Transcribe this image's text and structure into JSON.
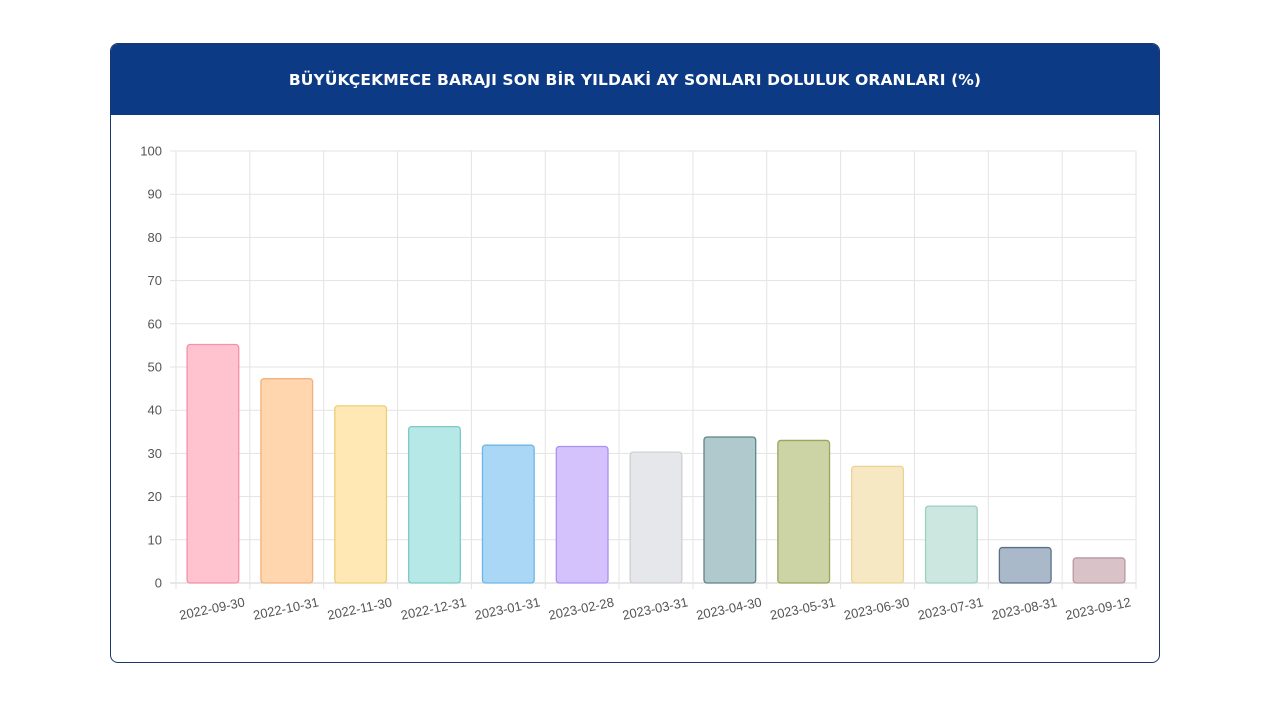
{
  "header": {
    "title": "BÜYÜKÇEKMECE BARAJI SON BİR YILDAKİ AY SONLARI DOLULUK ORANLARI (%)"
  },
  "colors": {
    "header_bg": "#0d3a84",
    "border": "#1a3670",
    "grid": "#e3e3e3"
  },
  "chart_data": {
    "type": "bar",
    "title": "BÜYÜKÇEKMECE BARAJI SON BİR YILDAKİ AY SONLARI DOLULUK ORANLARI (%)",
    "xlabel": "",
    "ylabel": "",
    "ylim": [
      0,
      100
    ],
    "yticks": [
      "0",
      "10",
      "20",
      "30",
      "40",
      "50",
      "60",
      "70",
      "80",
      "90",
      "100"
    ],
    "grid": true,
    "legend": "none",
    "categories": [
      "2022-09-30",
      "2022-10-31",
      "2022-11-30",
      "2022-12-31",
      "2023-01-31",
      "2023-02-28",
      "2023-03-31",
      "2023-04-30",
      "2023-05-31",
      "2023-06-30",
      "2023-07-31",
      "2023-08-31",
      "2023-09-12"
    ],
    "values": [
      55.2,
      47.3,
      41.0,
      36.2,
      31.9,
      31.6,
      30.3,
      33.8,
      33.0,
      27.0,
      17.8,
      8.2,
      5.8
    ],
    "bar_fill": [
      "#ffc2cf",
      "#ffd6ad",
      "#ffe8b3",
      "#b5e8e6",
      "#a9d7f5",
      "#d4c2fc",
      "#e6e7ea",
      "#b0c9cc",
      "#ccd3a5",
      "#f7e8c4",
      "#cce7df",
      "#a9b9ca",
      "#d9c3c9"
    ],
    "bar_stroke": [
      "#f590a8",
      "#f2b07a",
      "#efcd78",
      "#7ccac6",
      "#6fb6e6",
      "#ad8ff2",
      "#cdd0d6",
      "#5f8588",
      "#9aa55e",
      "#ecd394",
      "#9ccfc0",
      "#5a6f88",
      "#b799a2"
    ]
  }
}
